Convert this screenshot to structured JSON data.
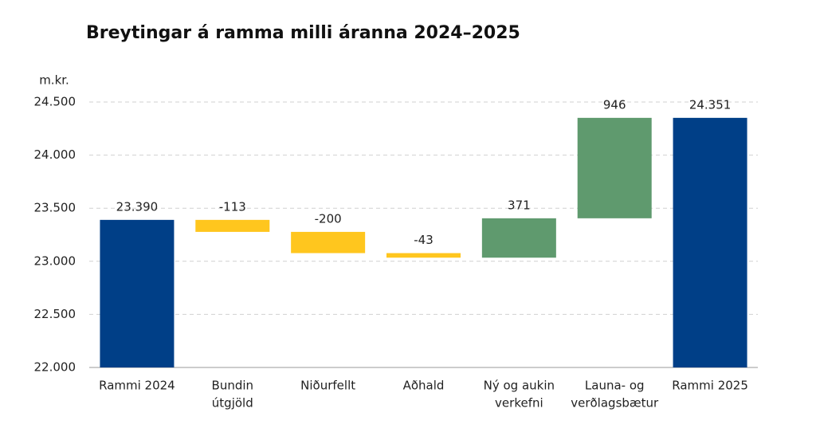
{
  "chart_data": {
    "type": "waterfall",
    "title": "Breytingar á ramma milli áranna 2024–2025",
    "y_label": "m.kr.",
    "categories": [
      [
        "Rammi 2024"
      ],
      [
        "Bundin",
        "útgjöld"
      ],
      [
        "Niðurfellt"
      ],
      [
        "Aðhald"
      ],
      [
        "Ný og aukin",
        "verkefni"
      ],
      [
        "Launa- og",
        "verðlagsbætur"
      ],
      [
        "Rammi 2025"
      ]
    ],
    "values": [
      23390,
      -113,
      -200,
      -43,
      371,
      946,
      24351
    ],
    "value_labels": [
      "23.390",
      "-113",
      "-200",
      "-43",
      "371",
      "946",
      "24.351"
    ],
    "measure": [
      "absolute",
      "relative",
      "relative",
      "relative",
      "relative",
      "relative",
      "total"
    ],
    "colors": {
      "total": "#003f87",
      "decrease": "#ffc61e",
      "increase": "#5f9a6e"
    },
    "ylim": [
      22000,
      24500
    ],
    "yticks": [
      {
        "value": 22000,
        "label": "22.000"
      },
      {
        "value": 22500,
        "label": "22.500"
      },
      {
        "value": 23000,
        "label": "23.000"
      },
      {
        "value": 23500,
        "label": "23.500"
      },
      {
        "value": 24000,
        "label": "24.000"
      },
      {
        "value": 24500,
        "label": "24.500"
      }
    ],
    "grid": true
  }
}
